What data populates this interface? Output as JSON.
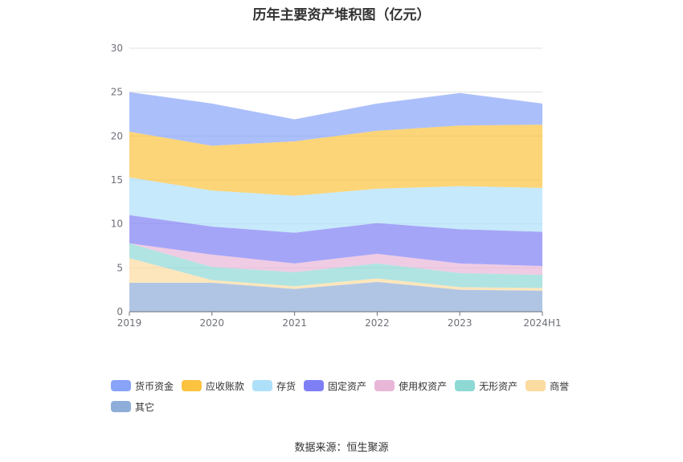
{
  "chart_data": {
    "type": "area",
    "stacked": true,
    "title": "历年主要资产堆积图（亿元）",
    "source": "数据来源：恒生聚源",
    "categories": [
      "2019",
      "2020",
      "2021",
      "2022",
      "2023",
      "2024H1"
    ],
    "ylim": [
      0,
      30
    ],
    "yticks": [
      "0",
      "5",
      "10",
      "15",
      "20",
      "25",
      "30"
    ],
    "grid": true,
    "legend_position": "bottom",
    "series": [
      {
        "name": "其它",
        "color": "#8eadd9",
        "values": [
          3.3,
          3.3,
          2.6,
          3.4,
          2.5,
          2.4
        ]
      },
      {
        "name": "商誉",
        "color": "#fcdba0",
        "values": [
          2.8,
          0.3,
          0.3,
          0.4,
          0.3,
          0.3
        ]
      },
      {
        "name": "无形资产",
        "color": "#8fd9d5",
        "values": [
          1.7,
          1.5,
          1.6,
          1.7,
          1.6,
          1.5
        ]
      },
      {
        "name": "使用权资产",
        "color": "#e8b7d8",
        "values": [
          0.0,
          1.4,
          1.0,
          1.1,
          1.1,
          1.0
        ]
      },
      {
        "name": "固定资产",
        "color": "#7f7ff5",
        "values": [
          3.2,
          3.2,
          3.5,
          3.5,
          3.9,
          3.9
        ]
      },
      {
        "name": "存货",
        "color": "#aee0fa",
        "values": [
          4.3,
          4.1,
          4.2,
          3.9,
          4.9,
          5.0
        ]
      },
      {
        "name": "应收账款",
        "color": "#fbc33f",
        "values": [
          5.2,
          5.1,
          6.2,
          6.6,
          6.9,
          7.2
        ]
      },
      {
        "name": "货币资金",
        "color": "#88a4f8",
        "values": [
          4.5,
          4.8,
          2.5,
          3.1,
          3.7,
          2.4
        ]
      }
    ],
    "legend_order": [
      "货币资金",
      "应收账款",
      "存货",
      "固定资产",
      "使用权资产",
      "无形资产",
      "商誉",
      "其它"
    ]
  }
}
